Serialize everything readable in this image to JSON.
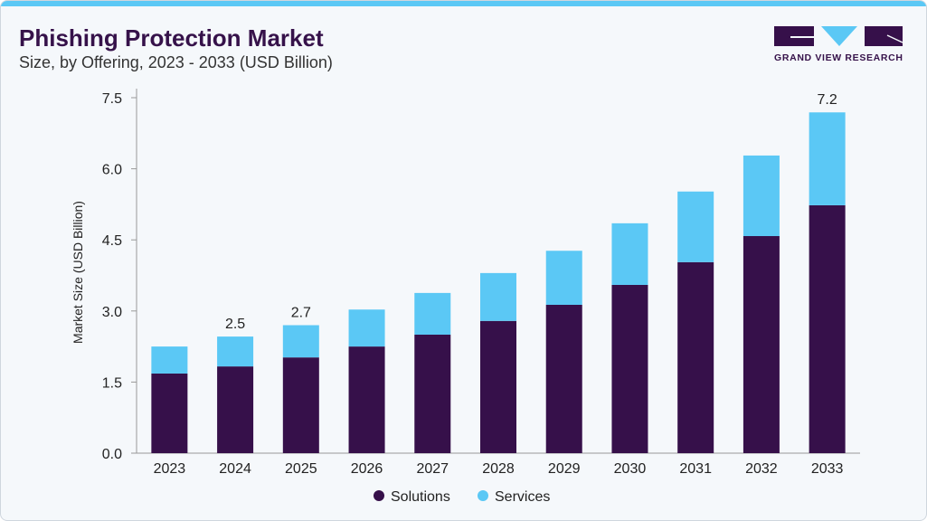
{
  "header": {
    "title": "Phishing Protection Market",
    "subtitle": "Size, by Offering, 2023 - 2033 (USD Billion)",
    "logo_text": "GRAND VIEW RESEARCH"
  },
  "colors": {
    "solutions": "#36104a",
    "services": "#5bc8f5",
    "accent": "#5bc8f5"
  },
  "chart_data": {
    "type": "bar",
    "stacked": true,
    "categories": [
      "2023",
      "2024",
      "2025",
      "2026",
      "2027",
      "2028",
      "2029",
      "2030",
      "2031",
      "2032",
      "2033"
    ],
    "series": [
      {
        "name": "Solutions",
        "values": [
          1.68,
          1.83,
          2.02,
          2.25,
          2.5,
          2.79,
          3.13,
          3.55,
          4.03,
          4.58,
          5.23
        ]
      },
      {
        "name": "Services",
        "values": [
          0.57,
          0.63,
          0.68,
          0.78,
          0.88,
          1.01,
          1.14,
          1.3,
          1.49,
          1.7,
          1.96
        ]
      }
    ],
    "data_labels": {
      "2024": "2.5",
      "2025": "2.7",
      "2033": "7.2"
    },
    "ylabel": "Market Size (USD Billion)",
    "xlabel": "",
    "ylim": [
      0,
      7.5
    ],
    "yticks": [
      "0.0",
      "1.5",
      "3.0",
      "4.5",
      "6.0",
      "7.5"
    ],
    "grid": false,
    "legend": "bottom-center"
  }
}
